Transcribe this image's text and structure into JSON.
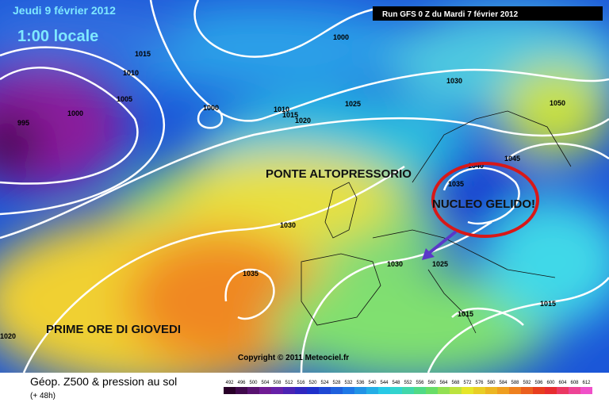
{
  "header": {
    "date": "Jeudi 9 février 2012",
    "time": "1:00 locale",
    "run": "Run GFS 0 Z du Mardi 7 février 2012"
  },
  "isobars": [
    "1000",
    "1015",
    "1010",
    "1005",
    "1000",
    "995",
    "1000",
    "1010",
    "1015",
    "1020",
    "1025",
    "1030",
    "1050",
    "1045",
    "1040",
    "1035",
    "1030",
    "1035",
    "1030",
    "1025",
    "1015",
    "1015",
    "1020"
  ],
  "annotations": [
    "PONTE ALTOPRESSORIO",
    "NUCLEO GELIDO!",
    "PRIME ORE DI GIOVEDI"
  ],
  "copyright": "Copyright © 2011 Meteociel.fr",
  "footer": {
    "title": "Géop. Z500 & pression au sol",
    "lead": "(+ 48h)",
    "scale": [
      492,
      496,
      500,
      504,
      508,
      512,
      516,
      520,
      524,
      528,
      532,
      536,
      540,
      544,
      548,
      552,
      556,
      560,
      564,
      568,
      572,
      576,
      580,
      584,
      588,
      592,
      596,
      600,
      604,
      608,
      612
    ]
  }
}
